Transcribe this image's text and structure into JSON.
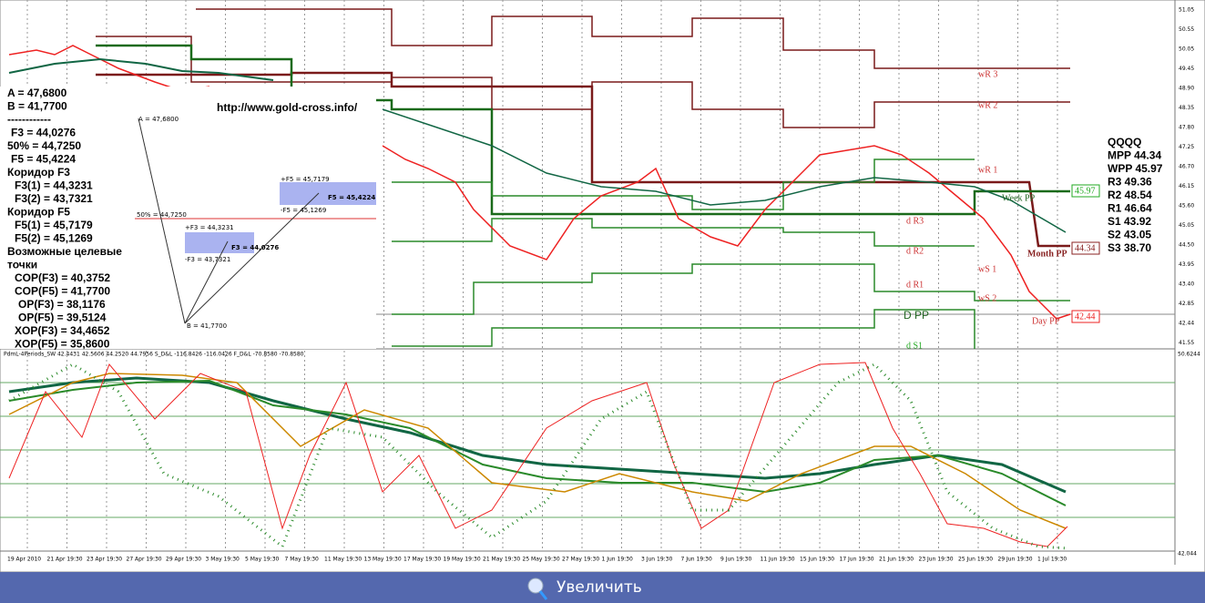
{
  "overlay": {
    "url": "http://www.gold-cross.info/",
    "levels": [
      "A = 47,6800",
      "B = 41,7700",
      "------------",
      "F3 = 44,0276",
      "50% = 44,7250",
      "F5 = 45,4224",
      "Коридор F3",
      "F3(1) = 44,3231",
      "F3(2) = 43,7321",
      "Коридор F5",
      "F5(1) = 45,7179",
      "F5(2) = 45,1269",
      "Возможные целевые",
      "точки",
      "COP(F3) = 40,3752",
      "COP(F5) = 41,7700",
      "OP(F3) = 38,1176",
      "OP(F5) = 39,5124",
      "XOP(F3) = 34,4652",
      "XOP(F5) = 35,8600"
    ],
    "diagram": {
      "a": "A = 47,6800",
      "b": "B = 41,7700",
      "half": "50% = 44,7250",
      "f3_plus": "+F3 = 44,3231",
      "f3_minus": "-F3 = 43,7321",
      "f3": "F3 = 44,0276",
      "f5_plus": "+F5 = 45,7179",
      "f5_minus": "-F5 = 45,1269",
      "f5": "F5 = 45,4224"
    }
  },
  "pivots": [
    "QQQQ",
    "MPP 44.34",
    "WPP 45.97",
    "R3 49.36",
    "R2 48.54",
    "R1 46.64",
    "S1 43.92",
    "S2 43.05",
    "S3 38.70"
  ],
  "chart_labels": {
    "wr3": "wR 3",
    "wr2": "wR 2",
    "wr1": "wR 1",
    "week_pp": "Week PP",
    "week_pp_price": "45.97",
    "dr3": "d R3",
    "dr2": "d R2",
    "dr1": "d R1",
    "dpp": "D PP",
    "ds1": "d S1",
    "ws1": "wS 1",
    "ws2": "wS 2",
    "month_pp": "Month PP",
    "month_pp_price": "44.34",
    "day_pp": "Day PP",
    "day_pp_price": "42.44"
  },
  "price_axis": [
    "51.05",
    "50.55",
    "50.05",
    "49.45",
    "48.90",
    "48.35",
    "47.80",
    "47.25",
    "46.70",
    "46.15",
    "45.60",
    "45.05",
    "44.50",
    "43.95",
    "43.40",
    "42.85",
    "42.44",
    "41.55"
  ],
  "indicator": {
    "header": "PdmL-4Periods_SW 42.4431 42.5606 44.2520 44.7956 S_D&L -116.8426 -116.0426 F_D&L -70.8580 -70.8580",
    "top": "50.6244",
    "bottom": "42.044"
  },
  "dates": [
    "19 Apr 2010",
    "21 Apr 19:30",
    "23 Apr 19:30",
    "27 Apr 19:30",
    "29 Apr 19:30",
    "3 May 19:30",
    "5 May 19:30",
    "7 May 19:30",
    "11 May 19:30",
    "13 May 19:30",
    "17 May 19:30",
    "19 May 19:30",
    "21 May 19:30",
    "25 May 19:30",
    "27 May 19:30",
    "1 Jun 19:30",
    "3 Jun 19:30",
    "7 Jun 19:30",
    "9 Jun 19:30",
    "11 Jun 19:30",
    "15 Jun 19:30",
    "17 Jun 19:30",
    "21 Jun 19:30",
    "23 Jun 19:30",
    "25 Jun 19:30",
    "29 Jun 19:30",
    "1 Jul 19:30"
  ],
  "button": "Увеличить"
}
